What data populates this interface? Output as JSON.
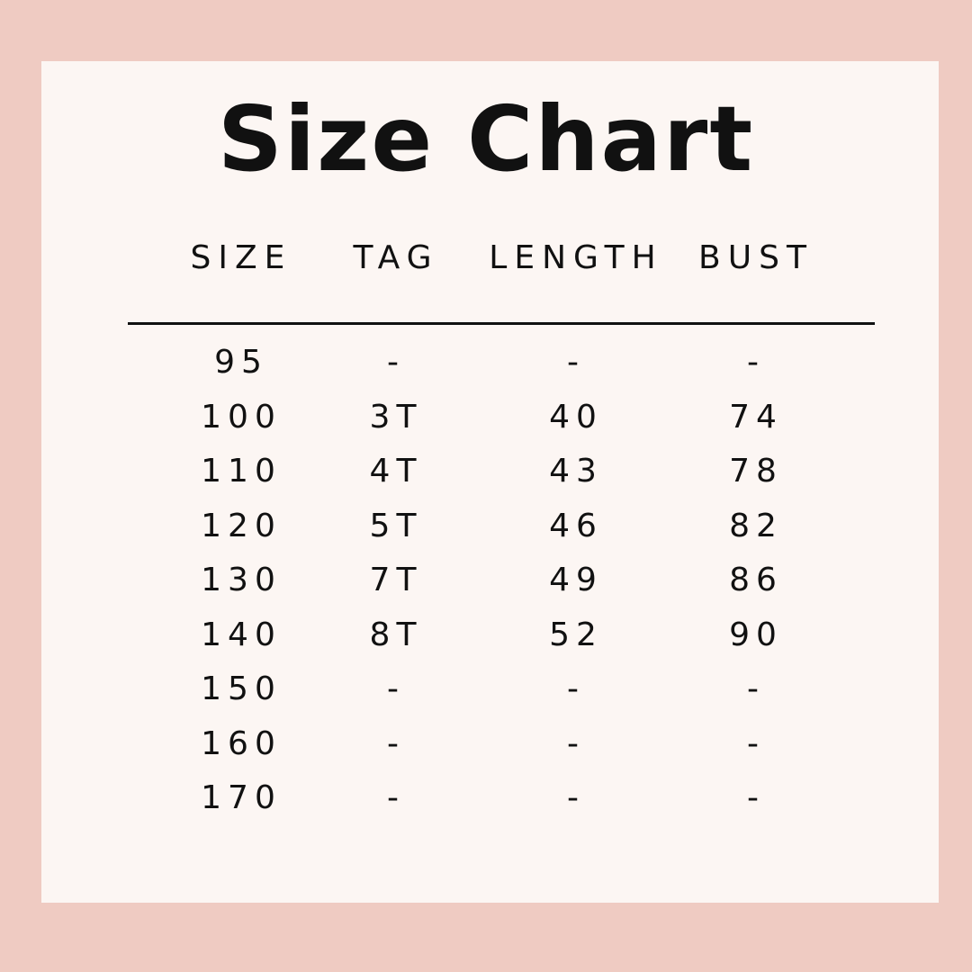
{
  "title": "Size Chart",
  "headers": [
    "SIZE",
    "TAG",
    "LENGTH",
    "BUST"
  ],
  "rows": [
    [
      "95",
      "-",
      "-",
      "-"
    ],
    [
      "100",
      "3T",
      "40",
      "74"
    ],
    [
      "110",
      "4T",
      "43",
      "78"
    ],
    [
      "120",
      "5T",
      "46",
      "82"
    ],
    [
      "130",
      "7T",
      "49",
      "86"
    ],
    [
      "140",
      "8T",
      "52",
      "90"
    ],
    [
      "150",
      "-",
      "-",
      "-"
    ],
    [
      "160",
      "-",
      "-",
      "-"
    ],
    [
      "170",
      "-",
      "-",
      "-"
    ]
  ],
  "colors": {
    "border": "#efcbc2",
    "card": "#fcf6f3",
    "text": "#111111"
  }
}
